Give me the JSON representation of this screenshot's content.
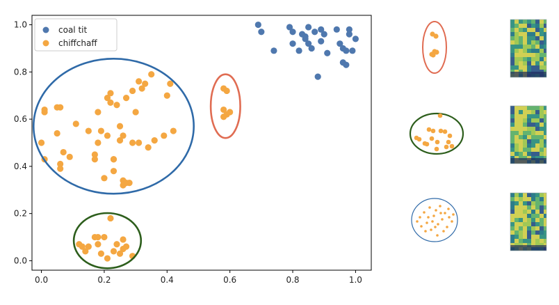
{
  "chart_data": {
    "type": "scatter",
    "title": "",
    "xlabel": "",
    "ylabel": "",
    "xlim": [
      -0.03,
      1.05
    ],
    "ylim": [
      -0.04,
      1.04
    ],
    "xticks": [
      0.0,
      0.2,
      0.4,
      0.6,
      0.8,
      1.0
    ],
    "yticks": [
      0.0,
      0.2,
      0.4,
      0.6,
      0.8,
      1.0
    ],
    "xtick_labels": [
      "0.0",
      "0.2",
      "0.4",
      "0.6",
      "0.8",
      "1.0"
    ],
    "ytick_labels": [
      "0.0",
      "0.2",
      "0.4",
      "0.6",
      "0.8",
      "1.0"
    ],
    "legend_position": "top-left",
    "series": [
      {
        "name": "coal tit",
        "color": "#4f78ae",
        "points": [
          [
            0.69,
            1.0
          ],
          [
            0.7,
            0.97
          ],
          [
            0.74,
            0.89
          ],
          [
            0.79,
            0.99
          ],
          [
            0.8,
            0.97
          ],
          [
            0.8,
            0.92
          ],
          [
            0.82,
            0.89
          ],
          [
            0.83,
            0.96
          ],
          [
            0.84,
            0.95
          ],
          [
            0.84,
            0.94
          ],
          [
            0.85,
            0.92
          ],
          [
            0.85,
            0.99
          ],
          [
            0.86,
            0.9
          ],
          [
            0.87,
            0.97
          ],
          [
            0.88,
            0.78
          ],
          [
            0.89,
            0.93
          ],
          [
            0.89,
            0.98
          ],
          [
            0.9,
            0.96
          ],
          [
            0.91,
            0.88
          ],
          [
            0.94,
            0.98
          ],
          [
            0.95,
            0.92
          ],
          [
            0.96,
            0.84
          ],
          [
            0.96,
            0.9
          ],
          [
            0.97,
            0.83
          ],
          [
            0.97,
            0.89
          ],
          [
            0.98,
            0.96
          ],
          [
            0.98,
            0.98
          ],
          [
            0.99,
            0.89
          ],
          [
            1.0,
            0.94
          ]
        ]
      },
      {
        "name": "chiffchaff",
        "color": "#f4a742",
        "points": [
          [
            0.0,
            0.5
          ],
          [
            0.01,
            0.43
          ],
          [
            0.01,
            0.64
          ],
          [
            0.01,
            0.63
          ],
          [
            0.05,
            0.54
          ],
          [
            0.05,
            0.65
          ],
          [
            0.06,
            0.65
          ],
          [
            0.06,
            0.39
          ],
          [
            0.06,
            0.41
          ],
          [
            0.07,
            0.46
          ],
          [
            0.09,
            0.44
          ],
          [
            0.11,
            0.58
          ],
          [
            0.15,
            0.55
          ],
          [
            0.17,
            0.45
          ],
          [
            0.17,
            0.43
          ],
          [
            0.18,
            0.5
          ],
          [
            0.18,
            0.63
          ],
          [
            0.19,
            0.55
          ],
          [
            0.2,
            0.35
          ],
          [
            0.21,
            0.53
          ],
          [
            0.21,
            0.69
          ],
          [
            0.22,
            0.71
          ],
          [
            0.22,
            0.67
          ],
          [
            0.23,
            0.43
          ],
          [
            0.23,
            0.38
          ],
          [
            0.23,
            0.43
          ],
          [
            0.24,
            0.66
          ],
          [
            0.25,
            0.51
          ],
          [
            0.25,
            0.57
          ],
          [
            0.26,
            0.32
          ],
          [
            0.26,
            0.53
          ],
          [
            0.26,
            0.34
          ],
          [
            0.27,
            0.33
          ],
          [
            0.27,
            0.69
          ],
          [
            0.28,
            0.33
          ],
          [
            0.29,
            0.5
          ],
          [
            0.29,
            0.72
          ],
          [
            0.3,
            0.63
          ],
          [
            0.31,
            0.76
          ],
          [
            0.31,
            0.5
          ],
          [
            0.32,
            0.73
          ],
          [
            0.33,
            0.75
          ],
          [
            0.34,
            0.48
          ],
          [
            0.35,
            0.79
          ],
          [
            0.36,
            0.51
          ],
          [
            0.39,
            0.53
          ],
          [
            0.4,
            0.7
          ],
          [
            0.41,
            0.75
          ],
          [
            0.42,
            0.55
          ],
          [
            0.58,
            0.73
          ],
          [
            0.59,
            0.72
          ],
          [
            0.58,
            0.64
          ],
          [
            0.59,
            0.62
          ],
          [
            0.6,
            0.63
          ],
          [
            0.58,
            0.61
          ],
          [
            0.12,
            0.07
          ],
          [
            0.13,
            0.06
          ],
          [
            0.14,
            0.04
          ],
          [
            0.15,
            0.06
          ],
          [
            0.17,
            0.1
          ],
          [
            0.18,
            0.1
          ],
          [
            0.18,
            0.07
          ],
          [
            0.19,
            0.03
          ],
          [
            0.2,
            0.1
          ],
          [
            0.21,
            0.01
          ],
          [
            0.22,
            0.18
          ],
          [
            0.23,
            0.04
          ],
          [
            0.24,
            0.07
          ],
          [
            0.25,
            0.03
          ],
          [
            0.26,
            0.09
          ],
          [
            0.26,
            0.05
          ],
          [
            0.27,
            0.06
          ],
          [
            0.29,
            0.02
          ]
        ]
      }
    ],
    "annotations": [
      {
        "name": "blue-ellipse",
        "color": "#2f6aa8",
        "center": [
          0.23,
          0.57
        ],
        "radii": [
          0.255,
          0.286
        ]
      },
      {
        "name": "red-ellipse",
        "color": "#e06c52",
        "center": [
          0.586,
          0.655
        ],
        "radii": [
          0.047,
          0.135
        ]
      },
      {
        "name": "green-ellipse",
        "color": "#2d5e1c",
        "center": [
          0.21,
          0.085
        ],
        "radii": [
          0.107,
          0.117
        ]
      }
    ]
  }
}
